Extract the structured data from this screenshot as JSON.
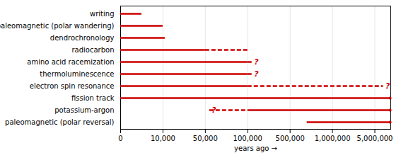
{
  "chart_data": {
    "type": "bar",
    "orientation": "horizontal",
    "categories": [
      "writing",
      "paleomagnetic (polar wandering)",
      "dendrochronology",
      "radiocarbon",
      "amino acid racemization",
      "thermoluminescence",
      "electron spin resonance",
      "fission track",
      "potassium-argon",
      "paleomagnetic (polar reversal)"
    ],
    "solid": [
      [
        0,
        5000
      ],
      [
        0,
        10000
      ],
      [
        0,
        12000
      ],
      [
        0,
        50000
      ],
      [
        0,
        100000
      ],
      [
        0,
        100000
      ],
      [
        0,
        100000
      ],
      [
        0,
        6200000
      ],
      [
        100000,
        6200000
      ],
      [
        700000,
        6200000
      ]
    ],
    "dashed": [
      null,
      null,
      null,
      [
        50000,
        100000
      ],
      [
        100000,
        140000
      ],
      [
        100000,
        140000
      ],
      [
        100000,
        5800000
      ],
      null,
      [
        55000,
        100000
      ],
      null
    ],
    "arrow": [
      false,
      false,
      false,
      false,
      false,
      false,
      false,
      true,
      true,
      true
    ],
    "annotation": "?",
    "annotation_at": [
      null,
      null,
      null,
      null,
      140000,
      140000,
      5800000,
      null,
      55000,
      null
    ],
    "xlabel": "years ago",
    "xlim": [
      0,
      6500000
    ],
    "xticks": [
      0,
      {
        "value": 10000,
        "label": "10,000"
      },
      {
        "value": 50000,
        "label": "50,000"
      },
      {
        "value": 100000,
        "label": "100,000"
      },
      {
        "value": 500000,
        "label": "500,000"
      },
      {
        "value": 1000000,
        "label": "1,000,000"
      },
      {
        "value": 5000000,
        "label": "5,000,000"
      }
    ],
    "color": "#cc0000",
    "grid": true
  }
}
